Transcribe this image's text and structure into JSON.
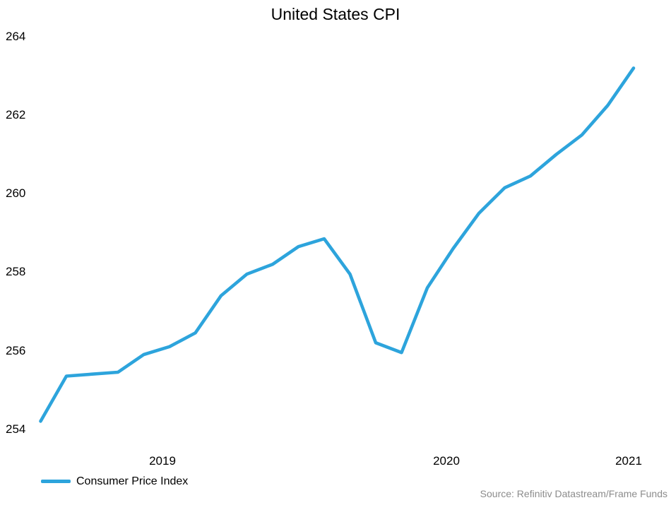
{
  "chart_data": {
    "type": "line",
    "title": "United States CPI",
    "xlabel": "",
    "ylabel": "",
    "grid": false,
    "legend_position": "bottom-left",
    "x_tick_labels": [
      "2019",
      "2020",
      "2021"
    ],
    "y_tick_labels": [
      "264",
      "262",
      "260",
      "258",
      "256",
      "254"
    ],
    "ylim": [
      254,
      264
    ],
    "x": [
      "2019-03",
      "2019-04",
      "2019-05",
      "2019-06",
      "2019-07",
      "2019-08",
      "2019-09",
      "2019-10",
      "2019-11",
      "2019-12",
      "2020-01",
      "2020-02",
      "2020-03",
      "2020-04",
      "2020-05",
      "2020-06",
      "2020-07",
      "2020-08",
      "2020-09",
      "2020-10",
      "2020-11",
      "2020-12",
      "2021-01",
      "2021-02"
    ],
    "series": [
      {
        "name": "Consumer Price Index",
        "color": "#2da4dc",
        "values": [
          254.2,
          255.35,
          255.4,
          255.45,
          255.9,
          256.1,
          256.45,
          257.4,
          257.95,
          258.2,
          258.65,
          258.85,
          257.95,
          256.2,
          255.95,
          257.6,
          258.6,
          259.5,
          260.15,
          260.45,
          261.0,
          261.5,
          262.25,
          263.2
        ]
      }
    ]
  },
  "source_note": "Source: Refinitiv Datastream/Frame Funds"
}
